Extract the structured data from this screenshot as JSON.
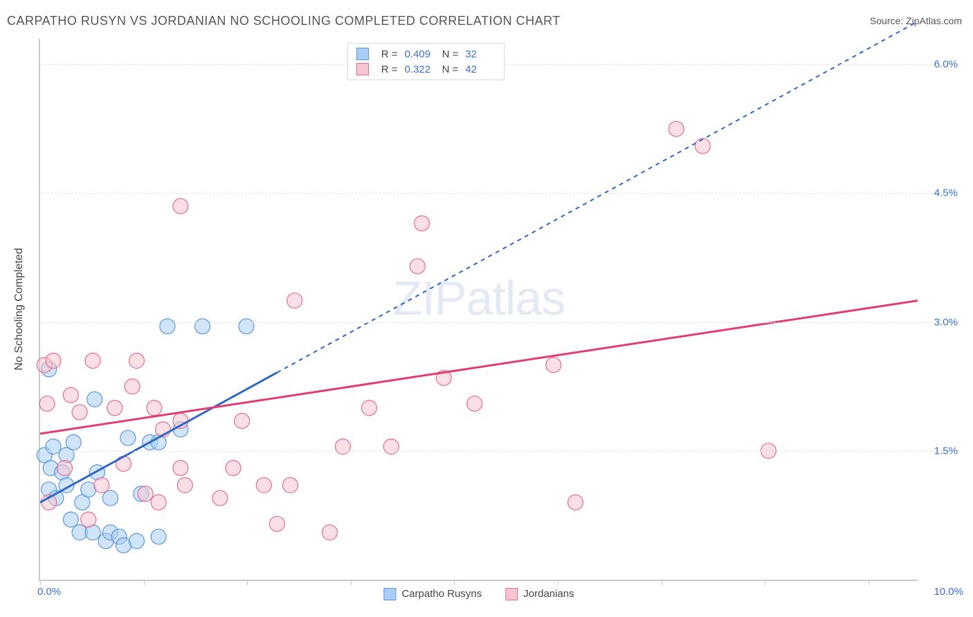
{
  "title": "CARPATHO RUSYN VS JORDANIAN NO SCHOOLING COMPLETED CORRELATION CHART",
  "source_prefix": "Source: ",
  "source": "ZipAtlas.com",
  "watermark": "ZIPatlas",
  "chart": {
    "type": "scatter",
    "background_color": "#ffffff",
    "grid_color": "#e4e4e4",
    "axis_color": "#c9c9c9",
    "xlim": [
      0,
      10
    ],
    "ylim": [
      0,
      6.3
    ],
    "yticks": [
      1.5,
      3.0,
      4.5,
      6.0
    ],
    "ytick_labels": [
      "1.5%",
      "3.0%",
      "4.5%",
      "6.0%"
    ],
    "xticks": [
      0,
      1.18,
      2.36,
      3.54,
      4.72,
      5.9,
      7.08,
      8.26,
      9.44
    ],
    "xlabel_min": "0.0%",
    "xlabel_max": "10.0%",
    "ylabel_text": "No Schooling Completed",
    "label_color": "#3b6fd6",
    "label_fontsize": 15,
    "title_fontsize": 18,
    "marker_radius": 11,
    "marker_opacity": 0.55,
    "series": [
      {
        "id": "carpatho",
        "name": "Carpatho Rusyns",
        "fill": "#a9cdf5",
        "stroke": "#5a96e0",
        "trend_color": "#2e66c4",
        "trend_width": 3,
        "trend_dash_extend": "6,6",
        "trend_solid_xmax": 2.7,
        "trend": {
          "x0": 0,
          "y0": 0.9,
          "x1": 10,
          "y1": 6.5
        },
        "R": "0.409",
        "N": "32",
        "points": [
          [
            0.05,
            1.45
          ],
          [
            0.1,
            2.45
          ],
          [
            0.1,
            1.05
          ],
          [
            0.12,
            1.3
          ],
          [
            0.15,
            1.55
          ],
          [
            0.18,
            0.95
          ],
          [
            0.25,
            1.25
          ],
          [
            0.3,
            1.1
          ],
          [
            0.3,
            1.45
          ],
          [
            0.35,
            0.7
          ],
          [
            0.38,
            1.6
          ],
          [
            0.45,
            0.55
          ],
          [
            0.48,
            0.9
          ],
          [
            0.55,
            1.05
          ],
          [
            0.6,
            0.55
          ],
          [
            0.62,
            2.1
          ],
          [
            0.65,
            1.25
          ],
          [
            0.75,
            0.45
          ],
          [
            0.8,
            0.95
          ],
          [
            0.8,
            0.55
          ],
          [
            0.9,
            0.5
          ],
          [
            0.95,
            0.4
          ],
          [
            1.0,
            1.65
          ],
          [
            1.1,
            0.45
          ],
          [
            1.15,
            1.0
          ],
          [
            1.25,
            1.6
          ],
          [
            1.35,
            0.5
          ],
          [
            1.45,
            2.95
          ],
          [
            1.6,
            1.75
          ],
          [
            1.85,
            2.95
          ],
          [
            2.35,
            2.95
          ],
          [
            1.35,
            1.6
          ]
        ]
      },
      {
        "id": "jordanian",
        "name": "Jordanians",
        "fill": "#f6c7d2",
        "stroke": "#e76b8f",
        "trend_color": "#e23d70",
        "trend_width": 3,
        "trend_dash_extend": null,
        "trend_solid_xmax": 10,
        "trend": {
          "x0": 0,
          "y0": 1.7,
          "x1": 10,
          "y1": 3.25
        },
        "R": "0.322",
        "N": "42",
        "points": [
          [
            0.05,
            2.5
          ],
          [
            0.08,
            2.05
          ],
          [
            0.1,
            0.9
          ],
          [
            0.15,
            2.55
          ],
          [
            0.28,
            1.3
          ],
          [
            0.35,
            2.15
          ],
          [
            0.45,
            1.95
          ],
          [
            0.55,
            0.7
          ],
          [
            0.6,
            2.55
          ],
          [
            0.7,
            1.1
          ],
          [
            0.85,
            2.0
          ],
          [
            0.95,
            1.35
          ],
          [
            1.05,
            2.25
          ],
          [
            1.2,
            1.0
          ],
          [
            1.3,
            2.0
          ],
          [
            1.4,
            1.75
          ],
          [
            1.35,
            0.9
          ],
          [
            1.6,
            1.3
          ],
          [
            1.65,
            1.1
          ],
          [
            1.6,
            4.35
          ],
          [
            1.6,
            1.85
          ],
          [
            2.05,
            0.95
          ],
          [
            2.2,
            1.3
          ],
          [
            2.3,
            1.85
          ],
          [
            2.55,
            1.1
          ],
          [
            2.7,
            0.65
          ],
          [
            2.85,
            1.1
          ],
          [
            2.9,
            3.25
          ],
          [
            3.3,
            0.55
          ],
          [
            3.45,
            1.55
          ],
          [
            3.75,
            2.0
          ],
          [
            4.0,
            1.55
          ],
          [
            4.3,
            3.65
          ],
          [
            4.35,
            4.15
          ],
          [
            4.6,
            2.35
          ],
          [
            4.95,
            2.05
          ],
          [
            5.85,
            2.5
          ],
          [
            6.1,
            0.9
          ],
          [
            7.25,
            5.25
          ],
          [
            7.55,
            5.05
          ],
          [
            8.3,
            1.5
          ],
          [
            1.1,
            2.55
          ]
        ]
      }
    ],
    "legend_labels": {
      "R": "R =",
      "N": "N ="
    }
  }
}
